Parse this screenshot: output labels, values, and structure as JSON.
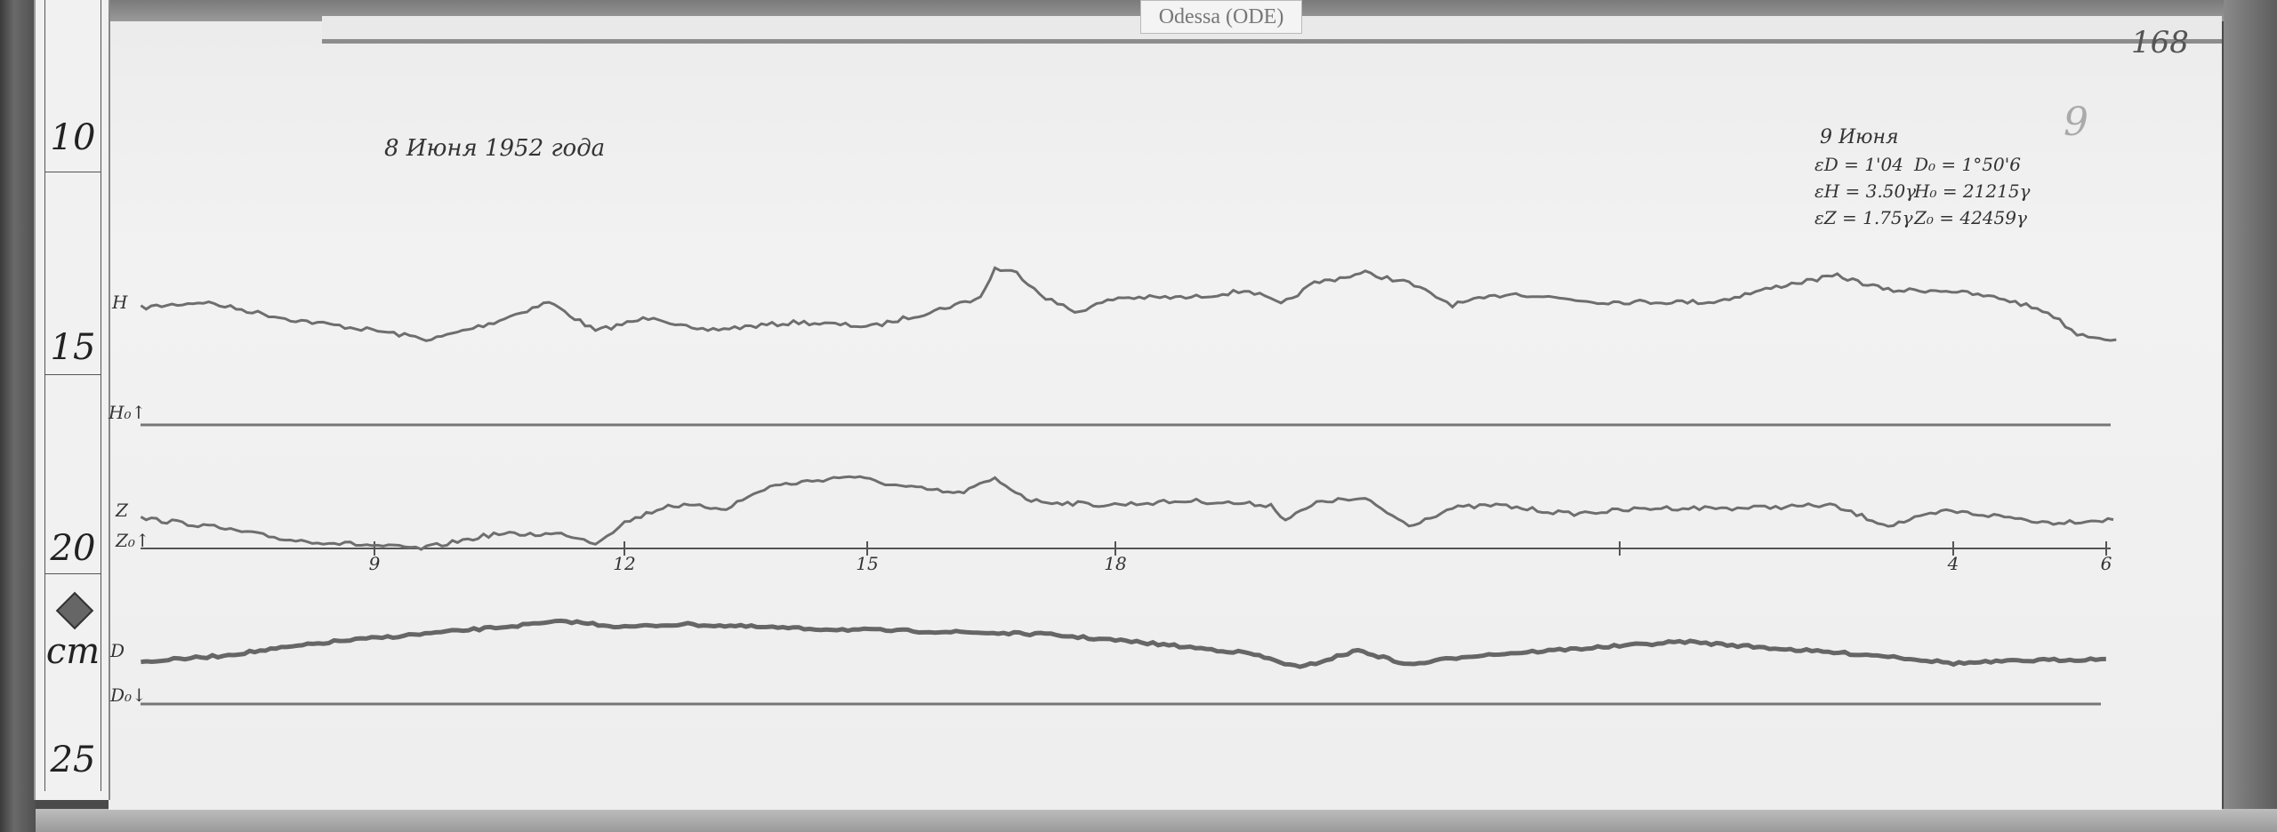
{
  "header": {
    "station_label": "Odessa (ODE)",
    "page_number": "168"
  },
  "ruler": {
    "marks": [
      "10",
      "15",
      "20",
      "25"
    ],
    "unit": "cm"
  },
  "record": {
    "date_left": "8 Июня 1952 года",
    "date_right": "9 Июня",
    "check_mark": "9",
    "constants": [
      {
        "scale": "εD = 1'04",
        "base": "D₀ = 1°50'6"
      },
      {
        "scale": "εH = 3.50γ",
        "base": "H₀ = 21215γ"
      },
      {
        "scale": "εZ = 1.75γ",
        "base": "Z₀ = 42459γ"
      }
    ],
    "trace_labels": {
      "h": "H",
      "h0": "H₀↑",
      "z": "Z",
      "z0": "Z₀↑",
      "d": "D",
      "d0": "D₀↓"
    },
    "hour_ticks": [
      "9",
      "12",
      "15",
      "18",
      "",
      "4",
      "6"
    ]
  },
  "colors": {
    "paper": "#efefef",
    "trace": "#6e6e6e",
    "ink": "#333333"
  }
}
